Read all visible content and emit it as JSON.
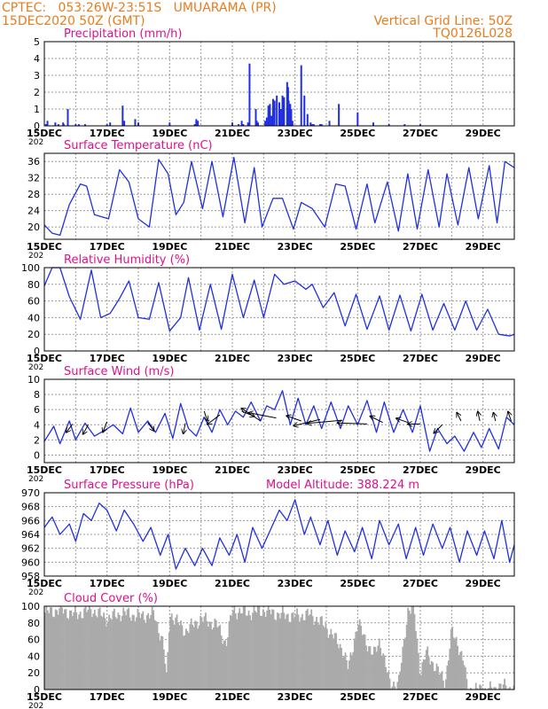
{
  "header": {
    "line1": "CPTEC:   053:26W-23:51S   UMUARAMA (PR)",
    "line2": "15DEC2020 50Z (GMT)",
    "grid_note": "Vertical Grid Line: 50Z",
    "code": "TQ0126L028"
  },
  "colors": {
    "header": "#e87c1e",
    "title": "#e0108c",
    "line": "#2030e0",
    "cloud": "#aaaaaa",
    "grid": "#999999",
    "arrow": "#000000"
  },
  "x_ticks": [
    "15DEC",
    "17DEC",
    "19DEC",
    "21DEC",
    "23DEC",
    "25DEC",
    "27DEC",
    "29DEC"
  ],
  "x_tick_days": [
    0,
    2,
    4,
    6,
    8,
    10,
    12,
    14
  ],
  "x_range_days": [
    0,
    15
  ],
  "year_label": "202",
  "model_altitude": "Model Altitude: 388.224 m",
  "chart_data": [
    {
      "type": "bar",
      "title": "Precipitation  (mm/h)",
      "ylim": [
        0,
        5
      ],
      "yticks": [
        0,
        1,
        2,
        3,
        4,
        5
      ],
      "x_days": [
        0.05,
        0.1,
        0.35,
        0.45,
        0.6,
        0.62,
        0.75,
        1.0,
        1.1,
        1.3,
        2.0,
        2.1,
        2.5,
        2.55,
        2.9,
        3.0,
        4.0,
        4.8,
        4.85,
        4.9,
        6.0,
        6.2,
        6.3,
        6.35,
        6.5,
        6.55,
        6.75,
        6.78,
        6.82,
        7.05,
        7.1,
        7.15,
        7.2,
        7.25,
        7.3,
        7.35,
        7.42,
        7.5,
        7.55,
        7.6,
        7.65,
        7.75,
        7.78,
        7.8,
        7.85,
        7.88,
        7.92,
        8.2,
        8.3,
        8.4,
        8.5,
        8.55,
        8.6,
        8.8,
        8.85,
        9.1,
        9.4,
        10.0,
        10.5,
        11.0,
        11.5,
        12.0
      ],
      "values": [
        0.1,
        0.3,
        0.2,
        0.1,
        0.2,
        0.1,
        1.0,
        0.1,
        0.1,
        0.1,
        0.1,
        0.2,
        1.2,
        0.3,
        0.4,
        0.2,
        0.2,
        0.1,
        0.4,
        0.3,
        0.2,
        0.1,
        0.3,
        0.1,
        0.2,
        3.7,
        1.0,
        0.3,
        0.2,
        0.3,
        0.5,
        1.2,
        1.3,
        0.6,
        1.6,
        1.5,
        1.8,
        1.4,
        1.0,
        1.8,
        1.7,
        2.6,
        2.3,
        1.5,
        1.3,
        1.0,
        0.3,
        3.6,
        1.8,
        0.7,
        0.2,
        0.1,
        0.1,
        0.1,
        0.1,
        0.3,
        1.3,
        0.8,
        0.2,
        0.1,
        0.1,
        0.1
      ],
      "xlabel": "",
      "ylabel": ""
    },
    {
      "type": "line",
      "title": "Surface Temperature (nC)",
      "ylim": [
        17,
        38
      ],
      "yticks": [
        20,
        24,
        28,
        32,
        36
      ],
      "x_days": [
        0,
        0.25,
        0.5,
        0.8,
        1.15,
        1.35,
        1.6,
        2.05,
        2.4,
        2.7,
        3.0,
        3.35,
        3.65,
        3.95,
        4.2,
        4.45,
        4.7,
        5.05,
        5.35,
        5.7,
        6.05,
        6.4,
        6.7,
        6.95,
        7.3,
        7.6,
        7.95,
        8.2,
        8.55,
        8.95,
        9.3,
        9.6,
        9.95,
        10.3,
        10.55,
        10.95,
        11.3,
        11.6,
        11.9,
        12.25,
        12.6,
        12.85,
        13.2,
        13.55,
        13.85,
        14.2,
        14.45,
        14.7,
        15.0
      ],
      "values": [
        20.5,
        18.5,
        18.0,
        25.5,
        30.5,
        30.0,
        23.0,
        22.0,
        34.0,
        31.0,
        22.0,
        20.0,
        36.5,
        33.0,
        23.0,
        26.0,
        36.0,
        24.5,
        36.0,
        22.5,
        37.0,
        21.0,
        34.5,
        20.0,
        27.0,
        27.0,
        19.5,
        26.0,
        24.5,
        20.0,
        30.5,
        30.0,
        19.5,
        30.5,
        21.0,
        31.0,
        19.0,
        33.0,
        19.5,
        34.0,
        20.0,
        33.0,
        20.5,
        34.5,
        22.0,
        35.0,
        21.0,
        36.0,
        34.5
      ],
      "xlabel": "",
      "ylabel": ""
    },
    {
      "type": "line",
      "title": "Relative Humidity  (%)",
      "ylim": [
        0,
        100
      ],
      "yticks": [
        0,
        20,
        40,
        60,
        80,
        100
      ],
      "x_days": [
        0,
        0.25,
        0.5,
        0.8,
        1.15,
        1.5,
        1.8,
        2.1,
        2.4,
        2.7,
        3.0,
        3.35,
        3.65,
        4.0,
        4.35,
        4.6,
        4.95,
        5.3,
        5.65,
        6.0,
        6.35,
        6.7,
        7.0,
        7.35,
        7.65,
        8.0,
        8.35,
        8.55,
        8.9,
        9.25,
        9.6,
        9.95,
        10.3,
        10.7,
        11.0,
        11.35,
        11.7,
        12.05,
        12.4,
        12.75,
        13.1,
        13.45,
        13.8,
        14.15,
        14.5,
        14.85,
        15.0
      ],
      "values": [
        78,
        100,
        100,
        65,
        38,
        97,
        40,
        45,
        63,
        84,
        40,
        38,
        82,
        24,
        40,
        88,
        25,
        80,
        26,
        92,
        40,
        85,
        40,
        92,
        80,
        84,
        74,
        80,
        52,
        70,
        30,
        68,
        26,
        66,
        25,
        67,
        24,
        68,
        25,
        57,
        25,
        60,
        25,
        50,
        20,
        18,
        20
      ],
      "xlabel": "",
      "ylabel": ""
    },
    {
      "type": "line",
      "title": "Surface Wind  (m/s)",
      "ylim": [
        -1,
        10
      ],
      "yticks": [
        0,
        2,
        4,
        6,
        8,
        10
      ],
      "x_days": [
        0,
        0.3,
        0.5,
        0.8,
        1.0,
        1.3,
        1.6,
        1.9,
        2.2,
        2.5,
        2.75,
        3.0,
        3.3,
        3.55,
        3.85,
        4.1,
        4.35,
        4.6,
        4.85,
        5.1,
        5.35,
        5.6,
        5.85,
        6.1,
        6.35,
        6.6,
        6.9,
        7.1,
        7.35,
        7.6,
        7.85,
        8.1,
        8.35,
        8.6,
        8.85,
        9.15,
        9.45,
        9.7,
        10.0,
        10.3,
        10.6,
        10.85,
        11.15,
        11.45,
        11.75,
        12.0,
        12.3,
        12.55,
        12.85,
        13.1,
        13.4,
        13.7,
        13.95,
        14.2,
        14.5,
        14.75,
        15.0
      ],
      "values": [
        1.8,
        3.8,
        1.5,
        4.5,
        2.0,
        4.2,
        2.5,
        3.2,
        4.0,
        2.8,
        6.2,
        3.0,
        4.5,
        3.0,
        5.5,
        2.2,
        6.8,
        3.5,
        2.5,
        5.0,
        3.0,
        6.0,
        4.0,
        5.8,
        5.0,
        7.0,
        4.5,
        6.5,
        6.0,
        8.5,
        4.0,
        7.5,
        4.0,
        6.5,
        3.5,
        7.0,
        3.5,
        6.5,
        4.0,
        7.2,
        3.0,
        7.0,
        3.0,
        6.0,
        3.0,
        6.5,
        0.5,
        3.5,
        1.5,
        2.5,
        0.5,
        3.0,
        1.0,
        3.5,
        0.8,
        5.0,
        4.0
      ],
      "vectors": [
        {
          "x": 0.9,
          "y": 4.1,
          "u": -0.6,
          "v": -0.8
        },
        {
          "x": 1.4,
          "y": 4.0,
          "u": -0.5,
          "v": -0.9
        },
        {
          "x": 2.0,
          "y": 4.4,
          "u": -0.4,
          "v": -1.0
        },
        {
          "x": 3.3,
          "y": 4.3,
          "u": 0.6,
          "v": -0.8
        },
        {
          "x": 4.5,
          "y": 4.2,
          "u": -0.2,
          "v": -1.0
        },
        {
          "x": 5.1,
          "y": 5.8,
          "u": 0.3,
          "v": -0.9
        },
        {
          "x": 5.6,
          "y": 5.3,
          "u": -1.2,
          "v": -0.9
        },
        {
          "x": 6.3,
          "y": 5.8,
          "u": 1.2,
          "v": -0.5
        },
        {
          "x": 6.9,
          "y": 4.5,
          "u": -1.8,
          "v": 1.2
        },
        {
          "x": 7.4,
          "y": 4.9,
          "u": -2.6,
          "v": 0.5
        },
        {
          "x": 8.2,
          "y": 4.5,
          "u": -1.4,
          "v": 0.5
        },
        {
          "x": 8.8,
          "y": 4.7,
          "u": -2.5,
          "v": -0.6
        },
        {
          "x": 9.5,
          "y": 4.6,
          "u": -3.3,
          "v": -0.3
        },
        {
          "x": 10.3,
          "y": 4.1,
          "u": -2.8,
          "v": 0.1
        },
        {
          "x": 10.8,
          "y": 4.3,
          "u": -1.2,
          "v": 0.6
        },
        {
          "x": 11.6,
          "y": 4.3,
          "u": -1.1,
          "v": 0.4
        },
        {
          "x": 12.0,
          "y": 4.1,
          "u": -1.2,
          "v": 0.0
        },
        {
          "x": 12.7,
          "y": 4.0,
          "u": -0.8,
          "v": -0.8
        },
        {
          "x": 13.3,
          "y": 4.5,
          "u": -0.4,
          "v": 0.8
        },
        {
          "x": 13.9,
          "y": 4.5,
          "u": -0.2,
          "v": 0.9
        },
        {
          "x": 14.4,
          "y": 4.5,
          "u": -0.2,
          "v": 0.8
        },
        {
          "x": 14.9,
          "y": 4.5,
          "u": -0.3,
          "v": 0.9
        }
      ],
      "xlabel": "",
      "ylabel": ""
    },
    {
      "type": "line",
      "title": "Surface Pressure (hPa)",
      "ylim": [
        958,
        970
      ],
      "yticks": [
        958,
        960,
        962,
        964,
        966,
        968,
        970
      ],
      "x_days": [
        0,
        0.25,
        0.5,
        0.8,
        1.0,
        1.25,
        1.5,
        1.75,
        2.0,
        2.3,
        2.55,
        2.85,
        3.15,
        3.4,
        3.7,
        3.95,
        4.2,
        4.5,
        4.8,
        5.05,
        5.35,
        5.6,
        5.9,
        6.15,
        6.4,
        6.65,
        6.95,
        7.2,
        7.5,
        7.75,
        8.0,
        8.3,
        8.5,
        8.8,
        9.05,
        9.35,
        9.6,
        9.9,
        10.15,
        10.45,
        10.7,
        11.0,
        11.3,
        11.55,
        11.85,
        12.1,
        12.4,
        12.7,
        12.95,
        13.25,
        13.5,
        13.8,
        14.05,
        14.35,
        14.6,
        14.85,
        15.0
      ],
      "values": [
        965.0,
        966.5,
        964.0,
        965.5,
        963.0,
        967.0,
        966.0,
        968.5,
        967.5,
        964.5,
        967.5,
        965.5,
        963.0,
        965.0,
        961.0,
        964.0,
        959.0,
        962.0,
        959.5,
        962.0,
        959.5,
        963.5,
        961.0,
        964.0,
        960.0,
        965.0,
        962.0,
        964.5,
        967.5,
        966.0,
        969.0,
        964.0,
        966.5,
        962.5,
        966.0,
        961.0,
        964.5,
        961.5,
        965.0,
        960.5,
        966.0,
        962.5,
        965.5,
        960.5,
        965.0,
        961.0,
        965.5,
        962.0,
        965.0,
        960.0,
        964.5,
        961.0,
        964.5,
        960.5,
        966.0,
        960.0,
        962.5
      ],
      "xlabel": "",
      "ylabel": ""
    },
    {
      "type": "area",
      "title": "Cloud Cover  (%)",
      "ylim": [
        0,
        100
      ],
      "yticks": [
        0,
        20,
        40,
        60,
        80,
        100
      ],
      "x_days": [
        0,
        0.5,
        1.0,
        1.5,
        2.0,
        2.5,
        3.0,
        3.5,
        3.8,
        3.9,
        4.0,
        4.5,
        5.0,
        5.5,
        5.8,
        6.0,
        6.5,
        7.0,
        7.5,
        8.0,
        8.5,
        9.0,
        9.5,
        9.7,
        10.0,
        10.5,
        10.7,
        11.0,
        11.3,
        11.6,
        11.8,
        12.0,
        12.2,
        12.5,
        12.8,
        13.0,
        13.2,
        13.4,
        13.5,
        14.0,
        14.4,
        14.5,
        15.0
      ],
      "values": [
        92,
        96,
        90,
        96,
        85,
        92,
        88,
        90,
        55,
        10,
        92,
        70,
        85,
        78,
        55,
        95,
        92,
        95,
        90,
        88,
        90,
        75,
        50,
        25,
        80,
        40,
        60,
        10,
        5,
        95,
        95,
        20,
        45,
        25,
        10,
        70,
        55,
        30,
        0,
        0,
        0,
        5,
        0
      ],
      "xlabel": "",
      "ylabel": ""
    }
  ]
}
